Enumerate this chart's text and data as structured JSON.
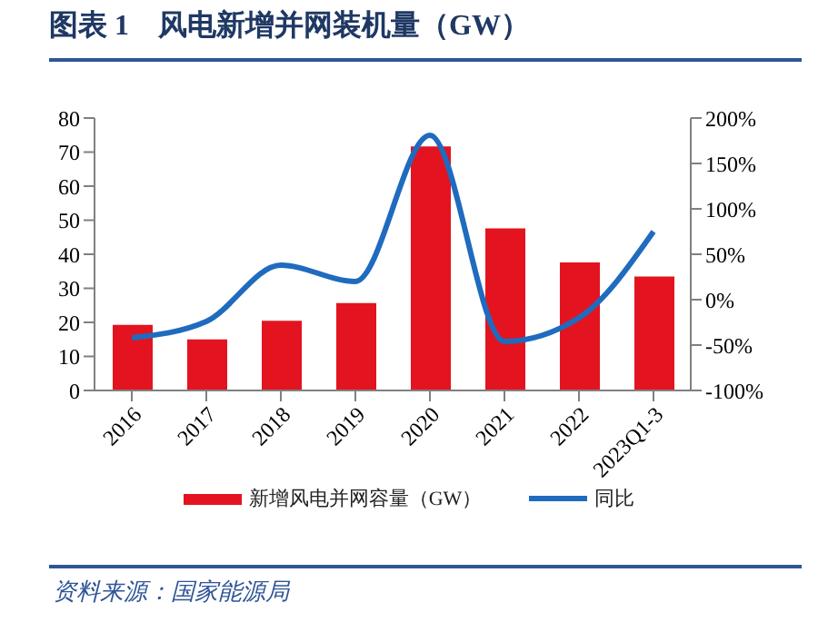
{
  "chart_data": {
    "type": "bar",
    "title": "图表 1　风电新增并网装机量（GW）",
    "annotations": [
      "资料来源：国家能源局"
    ],
    "categories": [
      "2016",
      "2017",
      "2018",
      "2019",
      "2020",
      "2021",
      "2022",
      "2023Q1-3"
    ],
    "series": [
      {
        "name": "新增风电并网容量（GW）",
        "color": "#e3141f",
        "values": [
          19.3,
          15.0,
          20.5,
          25.7,
          71.7,
          47.6,
          37.6,
          33.5
        ]
      },
      {
        "name": "同比",
        "type": "line",
        "axis": "y2",
        "color": "#1f6bbf",
        "values": [
          -42,
          -24,
          38,
          20,
          181,
          -46,
          -20,
          75
        ]
      }
    ],
    "ylim": [
      0,
      80
    ],
    "yticks": [
      0,
      10,
      20,
      30,
      40,
      50,
      60,
      70,
      80
    ],
    "y2lim": [
      -100,
      200
    ],
    "y2ticks": [
      {
        "value": -100,
        "label": "-100%"
      },
      {
        "value": -50,
        "label": "-50%"
      },
      {
        "value": 0,
        "label": "0%"
      },
      {
        "value": 50,
        "label": "50%"
      },
      {
        "value": 100,
        "label": "100%"
      },
      {
        "value": 150,
        "label": "150%"
      },
      {
        "value": 200,
        "label": "200%"
      }
    ],
    "legend": "bottom",
    "grid": false,
    "marker": "none",
    "line_style": "solid"
  }
}
